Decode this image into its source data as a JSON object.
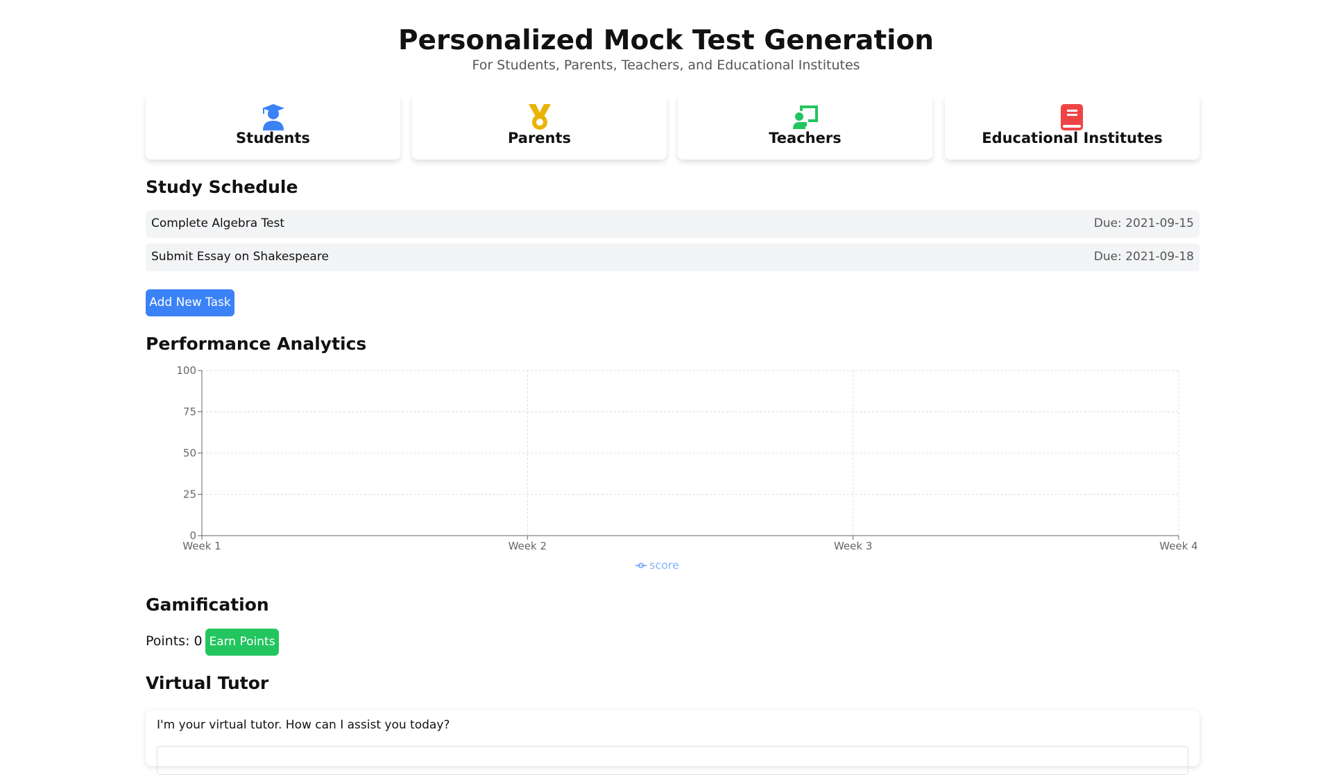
{
  "header": {
    "title": "Personalized Mock Test Generation",
    "subtitle": "For Students, Parents, Teachers, and Educational Institutes"
  },
  "roles": [
    "Students",
    "Parents",
    "Teachers",
    "Educational Institutes"
  ],
  "schedule": {
    "heading": "Study Schedule",
    "tasks": [
      {
        "name": "Complete Algebra Test",
        "due": "Due: 2021-09-15"
      },
      {
        "name": "Submit Essay on Shakespeare",
        "due": "Due: 2021-09-18"
      }
    ],
    "button": "Add New Task"
  },
  "analytics": {
    "heading": "Performance Analytics"
  },
  "chart_data": {
    "type": "line",
    "categories": [
      "Week 1",
      "Week 2",
      "Week 3",
      "Week 4"
    ],
    "series": [
      {
        "name": "score",
        "color": "#3b82f6",
        "values": [
          null,
          null,
          null,
          null
        ]
      }
    ],
    "ylim": [
      0,
      100
    ],
    "yticks": [
      0,
      25,
      50,
      75,
      100
    ],
    "grid": true,
    "legend": "bottom"
  },
  "gamification": {
    "heading": "Gamification",
    "points": "Points: 0",
    "button": "Earn Points"
  },
  "tutor": {
    "heading": "Virtual Tutor",
    "message": "I'm your virtual tutor. How can I assist you today?"
  }
}
